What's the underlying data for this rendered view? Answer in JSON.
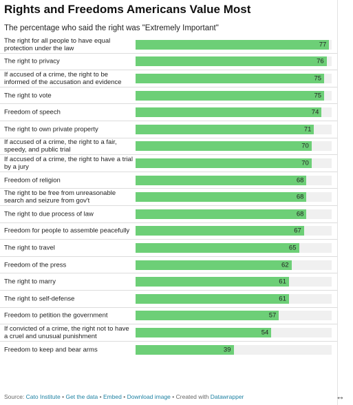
{
  "title": "Rights and Freedoms Americans Value Most",
  "subtitle": "The percentage who said the right was \"Extremely Important\"",
  "chart_data": {
    "type": "bar",
    "orientation": "horizontal",
    "categories": [
      "The right for all people to have equal protection under the law",
      "The right to privacy",
      "If accused of a crime, the right to be informed of the accusation and evidence",
      "The right to vote",
      "Freedom of speech",
      "The right to own private property",
      "If accused of a crime, the right to a fair, speedy, and public trial",
      "If accused of a crime, the right to have a trial by a jury",
      "Freedom of religion",
      "The right to be free from unreasonable search and seizure from gov't",
      "The right to due process of law",
      "Freedom for people to assemble peacefully",
      "The right to travel",
      "Freedom of the press",
      "The right to marry",
      "The right to self-defense",
      "Freedom to petition the government",
      "If convicted of a crime, the right not to have a cruel and unusual punishment",
      "Freedom to keep and bear arms"
    ],
    "values": [
      77,
      76,
      75,
      75,
      74,
      71,
      70,
      70,
      68,
      68,
      68,
      67,
      65,
      62,
      61,
      61,
      57,
      54,
      39
    ],
    "xlim": [
      0,
      78
    ],
    "bar_color": "#6dcf77",
    "track_color": "#f0f0f0"
  },
  "footer": {
    "source_prefix": "Source: ",
    "source": "Cato Institute",
    "sep": " • ",
    "get_data": "Get the data",
    "embed": "Embed",
    "download": "Download image",
    "created_prefix": "Created with ",
    "tool": "Datawrapper"
  }
}
